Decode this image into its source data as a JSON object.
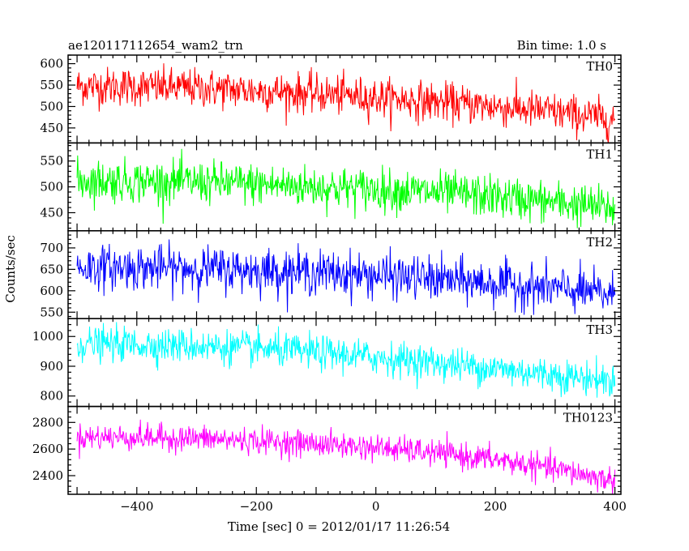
{
  "chart_data": {
    "type": "line",
    "title_left": "ae120117112654_wam2_trn",
    "title_right": "Bin time: 1.0 s",
    "xlabel": "Time [sec] 0 = 2012/01/17 11:26:54",
    "ylabel": "Counts/sec",
    "xlim": [
      -515,
      410
    ],
    "xticks": [
      -400,
      -200,
      0,
      200,
      400
    ],
    "x_range": [
      -500,
      400
    ],
    "grid": false,
    "series": [
      {
        "name": "TH0",
        "color": "#ff0000",
        "ylim": [
          415,
          620
        ],
        "yticks": [
          450,
          500,
          550,
          600
        ],
        "trend_x": [
          -500,
          -400,
          -300,
          -200,
          -100,
          0,
          100,
          200,
          300,
          400
        ],
        "trend_y": [
          548,
          546,
          543,
          537,
          530,
          521,
          511,
          500,
          487,
          470
        ],
        "noise": 30
      },
      {
        "name": "TH1",
        "color": "#00ff00",
        "ylim": [
          415,
          585
        ],
        "yticks": [
          450,
          500,
          550
        ],
        "trend_x": [
          -500,
          -400,
          -300,
          -200,
          -100,
          0,
          100,
          200,
          300,
          400
        ],
        "trend_y": [
          512,
          511,
          509,
          505,
          500,
          495,
          489,
          481,
          470,
          458
        ],
        "noise": 27
      },
      {
        "name": "TH2",
        "color": "#0000ff",
        "ylim": [
          535,
          740
        ],
        "yticks": [
          550,
          600,
          650,
          700
        ],
        "trend_x": [
          -500,
          -400,
          -300,
          -200,
          -100,
          0,
          100,
          200,
          300,
          400
        ],
        "trend_y": [
          655,
          654,
          652,
          648,
          643,
          636,
          627,
          617,
          605,
          590
        ],
        "noise": 34
      },
      {
        "name": "TH3",
        "color": "#00ffff",
        "ylim": [
          765,
          1060
        ],
        "yticks": [
          800,
          900,
          1000
        ],
        "trend_x": [
          -500,
          -400,
          -300,
          -200,
          -100,
          0,
          100,
          200,
          300,
          400
        ],
        "trend_y": [
          975,
          973,
          968,
          959,
          946,
          930,
          912,
          892,
          871,
          850
        ],
        "noise": 38
      },
      {
        "name": "TH0123",
        "color": "#ff00ff",
        "ylim": [
          2260,
          2920
        ],
        "yticks": [
          2400,
          2600,
          2800
        ],
        "trend_x": [
          -500,
          -400,
          -300,
          -200,
          -100,
          0,
          100,
          200,
          300,
          400
        ],
        "trend_y": [
          2690,
          2688,
          2680,
          2660,
          2640,
          2610,
          2570,
          2520,
          2450,
          2360
        ],
        "noise": 65
      }
    ]
  }
}
